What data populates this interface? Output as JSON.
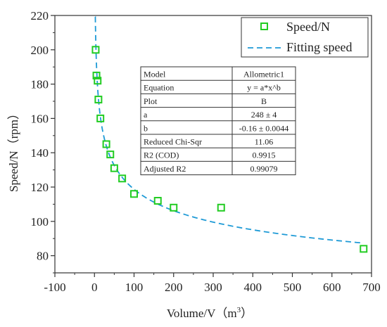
{
  "chart_data": {
    "type": "scatter",
    "xlabel": "Volume/V",
    "xlabel_unit_base": "m",
    "xlabel_unit_exp": "3",
    "ylabel": "Speed/N（rpm）",
    "xlim": [
      -100,
      700
    ],
    "ylim": [
      70,
      220
    ],
    "x_ticks": [
      -100,
      0,
      100,
      200,
      300,
      400,
      500,
      600,
      700
    ],
    "y_ticks": [
      80,
      100,
      120,
      140,
      160,
      180,
      200,
      220
    ],
    "grid": false,
    "legend_position": "top-right",
    "series": [
      {
        "name": "Speed/N",
        "kind": "scatter",
        "marker": "open-square",
        "color": "#22cc22",
        "x": [
          3,
          5,
          8,
          10,
          15,
          30,
          40,
          50,
          70,
          100,
          160,
          200,
          320,
          680
        ],
        "y": [
          200,
          185,
          182,
          171,
          160,
          145,
          139,
          131,
          125,
          116,
          112,
          108,
          108,
          84
        ]
      },
      {
        "name": "Fitting speed",
        "kind": "line",
        "style": "dashed",
        "color": "#1e9ad6",
        "model": "allometric",
        "a": 248,
        "b": -0.16,
        "x_range": [
          2,
          680
        ]
      }
    ],
    "fit_table": {
      "rows": [
        [
          "Model",
          "Allometric1"
        ],
        [
          "Equation",
          "y = a*x^b"
        ],
        [
          "Plot",
          "B"
        ],
        [
          "a",
          "248 ± 4"
        ],
        [
          "b",
          "-0.16 ± 0.0044"
        ],
        [
          "Reduced Chi-Sqr",
          "11.06"
        ],
        [
          "R2 (COD)",
          "0.9915"
        ],
        [
          "Adjusted R2",
          "0.99079"
        ]
      ]
    }
  }
}
